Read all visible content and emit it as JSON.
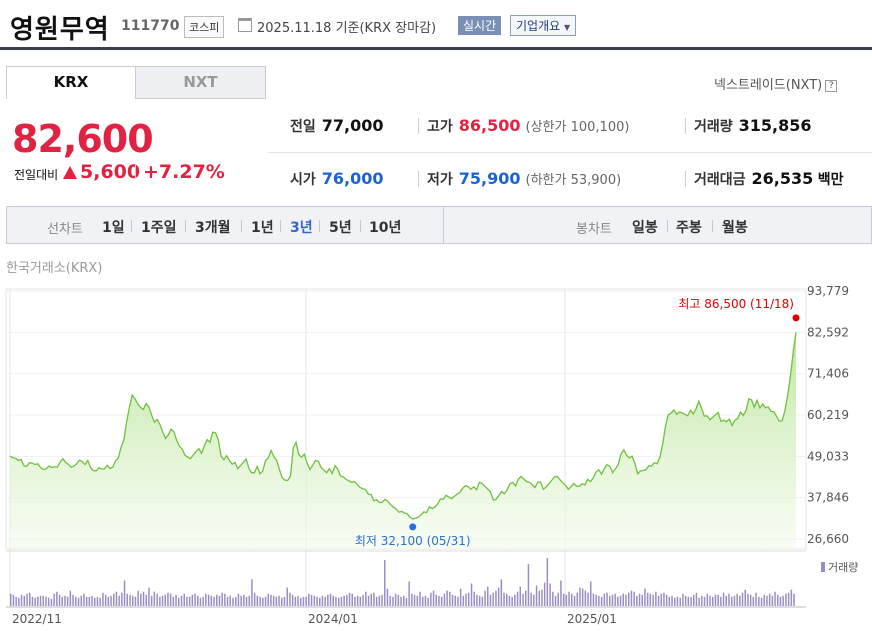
{
  "header": {
    "company_name": "영원무역",
    "stock_code": "111770",
    "market": "코스피",
    "date_text": "2025.11.18 기준(KRX 장마감)",
    "realtime_label": "실시간",
    "corp_info_label": "기업개요"
  },
  "tabs": [
    {
      "label": "KRX",
      "selected": true
    },
    {
      "label": "NXT",
      "selected": false
    }
  ],
  "nxt_link": "넥스트레이드(NXT)",
  "quote": {
    "price": "82,600",
    "change_label": "전일대비",
    "change": "5,600",
    "change_pct": "+7.27%",
    "direction": "up",
    "up_color": "#e12343",
    "down_color": "#1a64d2"
  },
  "stats": {
    "prev_close": {
      "label": "전일",
      "value": "77,000"
    },
    "high": {
      "label": "고가",
      "value": "86,500",
      "sub": "(상한가 100,100)"
    },
    "volume": {
      "label": "거래량",
      "value": "315,856"
    },
    "open": {
      "label": "시가",
      "value": "76,000"
    },
    "low": {
      "label": "저가",
      "value": "75,900",
      "sub": "(하한가 53,900)"
    },
    "trade_value": {
      "label": "거래대금",
      "value": "26,535",
      "unit": "백만"
    }
  },
  "period_bar": {
    "line_label": "선차트",
    "line_periods": [
      "1일",
      "1주일",
      "3개월",
      "1년",
      "3년",
      "5년",
      "10년"
    ],
    "selected_period": "3년",
    "candle_label": "봉차트",
    "candle_periods": [
      "일봉",
      "주봉",
      "월봉"
    ]
  },
  "exchange_label": "한국거래소(KRX)",
  "chart_data": {
    "type": "area",
    "y_ticks": [
      "93,779",
      "82,592",
      "71,406",
      "60,219",
      "49,033",
      "37,846",
      "26,660"
    ],
    "x_ticks": [
      "2022/11",
      "2024/01",
      "2025/01"
    ],
    "ylim": [
      26660,
      93779
    ],
    "high_annotation": "최고 86,500 (11/18)",
    "low_annotation": "최저 32,100 (05/31)",
    "high": {
      "value": 86500,
      "date": "11/18"
    },
    "low": {
      "value": 32100,
      "date": "05/31"
    },
    "volume_legend": "거래량",
    "line_color": "#70c040",
    "volume_color": "#9b8cc4",
    "series": [
      {
        "values": [
          49100,
          48700,
          48500,
          47900,
          48200,
          46500,
          46300,
          47300,
          47200,
          46800,
          47000,
          46000,
          45500,
          45600,
          46400,
          46000,
          46200,
          46100,
          47400,
          48400,
          47400,
          46900,
          46100,
          46400,
          47000,
          48000,
          47600,
          46800,
          47900,
          46000,
          45200,
          45100,
          45900,
          45600,
          45600,
          46600,
          45700,
          46100,
          47800,
          48600,
          51500,
          53500,
          58500,
          62300,
          65600,
          64600,
          63200,
          62300,
          61700,
          63300,
          62400,
          60200,
          58300,
          59000,
          57600,
          55600,
          53900,
          54800,
          56400,
          55700,
          53400,
          51800,
          51000,
          49300,
          48800,
          48400,
          49400,
          50400,
          51100,
          49800,
          51900,
          53600,
          52800,
          55600,
          55400,
          53500,
          49100,
          48100,
          49200,
          47900,
          46900,
          47400,
          45700,
          46500,
          47400,
          48300,
          45800,
          44600,
          44600,
          46300,
          44300,
          45000,
          47900,
          48600,
          50600,
          48900,
          48000,
          45500,
          43200,
          42600,
          42500,
          43700,
          51400,
          52800,
          49500,
          48800,
          49600,
          47100,
          45500,
          46600,
          47900,
          47700,
          46000,
          45400,
          44600,
          45700,
          44400,
          46500,
          45600,
          43700,
          43500,
          42800,
          42400,
          42000,
          42200,
          41500,
          40600,
          40300,
          40000,
          38800,
          38700,
          37000,
          37300,
          36500,
          36600,
          37400,
          36900,
          36000,
          35300,
          34800,
          33900,
          34100,
          33700,
          33500,
          32600,
          32100,
          32300,
          32600,
          33200,
          34000,
          33800,
          35400,
          34900,
          35300,
          36200,
          37500,
          37400,
          38500,
          38000,
          37600,
          38200,
          38800,
          39300,
          40400,
          41100,
          40800,
          40100,
          40800,
          40000,
          42000,
          41700,
          40900,
          40200,
          39400,
          37200,
          37400,
          38400,
          39500,
          38900,
          40000,
          41600,
          42000,
          41000,
          42800,
          43600,
          42900,
          42200,
          42000,
          41400,
          40600,
          42000,
          42100,
          40100,
          40700,
          41600,
          42500,
          43400,
          43600,
          42700,
          41900,
          41200,
          40100,
          40800,
          41700,
          40900,
          40900,
          41600,
          41300,
          42800,
          42200,
          43200,
          44800,
          45400,
          44200,
          45700,
          46800,
          46300,
          44600,
          45700,
          46800,
          49600,
          50800,
          49300,
          48600,
          49100,
          47100,
          44300,
          45100,
          45200,
          45400,
          46500,
          46400,
          47300,
          47000,
          48800,
          52400,
          57200,
          60300,
          60700,
          61600,
          60400,
          61000,
          60800,
          60400,
          60000,
          61500,
          60500,
          61900,
          63900,
          62100,
          59900,
          60000,
          58900,
          59600,
          60300,
          60900,
          58500,
          58800,
          58400,
          59100,
          57400,
          58800,
          59300,
          61000,
          60100,
          61400,
          64600,
          64300,
          62300,
          64200,
          62100,
          63200,
          62200,
          62400,
          61200,
          61100,
          59800,
          58600,
          58600,
          61400,
          65600,
          70700,
          77300,
          82600
        ]
      }
    ],
    "volume_series": [
      12,
      11,
      9,
      8,
      11,
      10,
      12,
      13,
      9,
      8,
      9,
      10,
      10,
      9,
      8,
      7,
      12,
      14,
      11,
      9,
      10,
      9,
      15,
      11,
      9,
      8,
      10,
      12,
      9,
      9,
      10,
      8,
      9,
      8,
      13,
      11,
      9,
      10,
      12,
      14,
      10,
      13,
      25,
      12,
      11,
      10,
      9,
      15,
      12,
      14,
      11,
      18,
      10,
      14,
      12,
      9,
      10,
      11,
      13,
      12,
      9,
      11,
      8,
      10,
      12,
      9,
      9,
      11,
      12,
      10,
      8,
      9,
      12,
      11,
      10,
      9,
      11,
      10,
      13,
      12,
      9,
      10,
      8,
      9,
      12,
      10,
      11,
      9,
      10,
      26,
      13,
      10,
      9,
      8,
      9,
      12,
      11,
      10,
      9,
      10,
      8,
      9,
      18,
      13,
      11,
      9,
      10,
      8,
      9,
      9,
      12,
      11,
      10,
      9,
      8,
      10,
      9,
      11,
      12,
      10,
      9,
      8,
      9,
      10,
      11,
      13,
      12,
      9,
      10,
      9,
      11,
      14,
      10,
      12,
      13,
      9,
      10,
      11,
      45,
      17,
      10,
      9,
      12,
      11,
      9,
      10,
      8,
      24,
      12,
      11,
      10,
      14,
      9,
      10,
      8,
      13,
      15,
      11,
      10,
      9,
      12,
      15,
      14,
      11,
      10,
      9,
      17,
      10,
      12,
      13,
      22,
      14,
      11,
      10,
      9,
      15,
      19,
      11,
      13,
      15,
      18,
      26,
      13,
      12,
      10,
      9,
      11,
      14,
      19,
      12,
      15,
      41,
      13,
      11,
      20,
      15,
      16,
      23,
      47,
      22,
      14,
      10,
      13,
      25,
      12,
      11,
      14,
      12,
      10,
      13,
      18,
      17,
      15,
      13,
      24,
      12,
      11,
      10,
      9,
      12,
      13,
      10,
      11,
      12,
      9,
      10,
      12,
      11,
      13,
      15,
      14,
      10,
      12,
      11,
      17,
      13,
      12,
      11,
      14,
      10,
      12,
      13,
      11,
      9,
      10,
      8,
      9,
      8,
      12,
      10,
      9,
      9,
      11,
      13,
      8,
      10,
      9,
      12,
      10,
      9,
      11,
      11,
      9,
      13,
      10,
      12,
      9,
      10,
      12,
      10,
      13,
      16,
      12,
      11,
      9,
      13,
      9,
      8,
      11,
      10,
      12,
      10,
      14,
      11,
      9,
      10,
      12,
      13,
      16,
      12
    ]
  }
}
